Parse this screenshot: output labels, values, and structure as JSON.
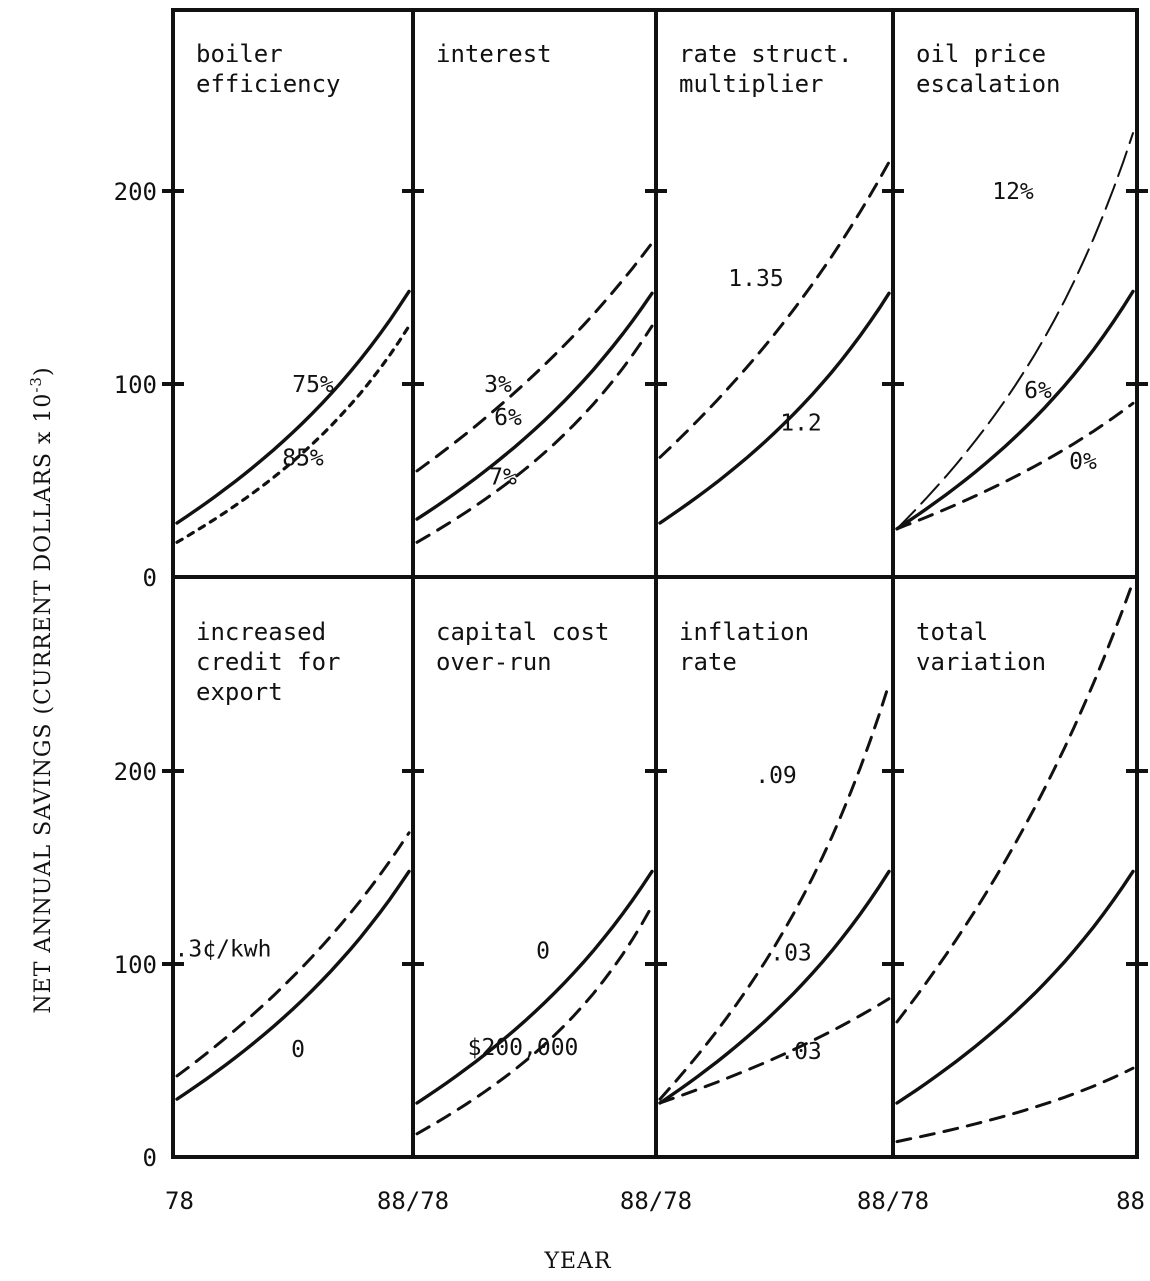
{
  "chart_data": {
    "type": "line",
    "ylabel": "NET ANNUAL SAVINGS (CURRENT DOLLARS x 10",
    "ylabel_sup": "-3",
    "ylabel_close": ")",
    "xlabel": "YEAR",
    "y_ticks": [
      "0",
      "100",
      "200"
    ],
    "y_ticks_bottom": [
      "0",
      "100",
      "200"
    ],
    "x_tick_labels": [
      "78",
      "88/78",
      "88/78",
      "88/78",
      "88"
    ],
    "ylim": [
      0,
      300
    ],
    "xlim": [
      78,
      88
    ],
    "panels": [
      {
        "title_lines": [
          "boiler",
          "efficiency"
        ],
        "series": [
          {
            "label": "75%",
            "style": "solid",
            "values": [
              28,
              148
            ]
          },
          {
            "label": "85%",
            "style": "dotted",
            "values": [
              18,
              130
            ]
          }
        ]
      },
      {
        "title_lines": [
          "interest"
        ],
        "series": [
          {
            "label": "3%",
            "style": "dashed",
            "values": [
              55,
              173
            ]
          },
          {
            "label": "6%",
            "style": "solid",
            "values": [
              30,
              147
            ]
          },
          {
            "label": "7%",
            "style": "dashed",
            "values": [
              18,
              130
            ]
          }
        ]
      },
      {
        "title_lines": [
          "rate struct.",
          "multiplier"
        ],
        "series": [
          {
            "label": "1.35",
            "style": "dashed",
            "values": [
              62,
              215
            ]
          },
          {
            "label": "1.2",
            "style": "solid",
            "values": [
              28,
              147
            ]
          }
        ]
      },
      {
        "title_lines": [
          "oil price",
          "escalation"
        ],
        "series": [
          {
            "label": "12%",
            "style": "dashdot",
            "values": [
              25,
              230
            ]
          },
          {
            "label": "6%",
            "style": "solid",
            "values": [
              25,
              148
            ]
          },
          {
            "label": "0%",
            "style": "dashed",
            "values": [
              25,
              90
            ]
          }
        ]
      },
      {
        "title_lines": [
          " increased",
          "credit for",
          "export"
        ],
        "series": [
          {
            "label": ".3¢/kwh",
            "style": "dashed",
            "values": [
              42,
              168
            ]
          },
          {
            "label": "0",
            "style": "solid",
            "values": [
              30,
              148
            ]
          }
        ]
      },
      {
        "title_lines": [
          "capital cost",
          "over-run"
        ],
        "series": [
          {
            "label": "0",
            "style": "solid",
            "values": [
              28,
              148
            ]
          },
          {
            "label": "$200,000",
            "style": "dashed",
            "values": [
              12,
              130
            ]
          }
        ]
      },
      {
        "title_lines": [
          "inflation",
          "rate"
        ],
        "series": [
          {
            "label": ".09",
            "style": "dashed",
            "values": [
              30,
              245
            ]
          },
          {
            "label": ".03",
            "style": "solid",
            "values": [
              28,
              148
            ]
          },
          {
            "label": ".03",
            "style": "dashed",
            "values": [
              28,
              82
            ]
          }
        ]
      },
      {
        "title_lines": [
          "total",
          "variation"
        ],
        "series": [
          {
            "label": "",
            "style": "dashed",
            "values": [
              70,
              298
            ]
          },
          {
            "label": "",
            "style": "solid",
            "values": [
              28,
              148
            ]
          },
          {
            "label": "",
            "style": "dashed",
            "values": [
              8,
              46
            ]
          }
        ]
      }
    ]
  }
}
